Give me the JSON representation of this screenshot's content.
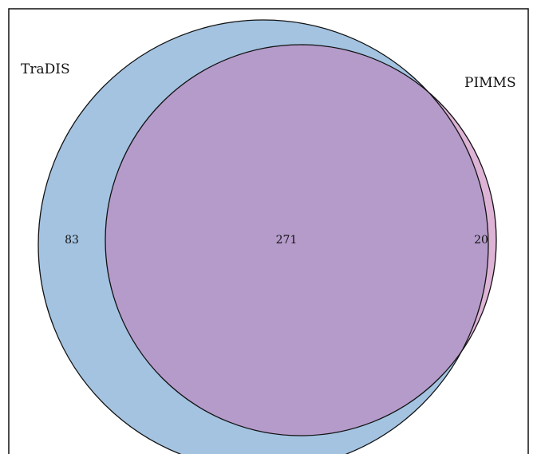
{
  "diagram": {
    "type": "venn",
    "sets": [
      {
        "name": "TraDIS",
        "only_count": "83",
        "color": "#a3c3e1"
      },
      {
        "name": "PIMMS",
        "only_count": "20",
        "color": "#ddb4d6"
      }
    ],
    "intersection": {
      "count": "271",
      "color": "#b59bca"
    },
    "outline_color": "#111111"
  }
}
